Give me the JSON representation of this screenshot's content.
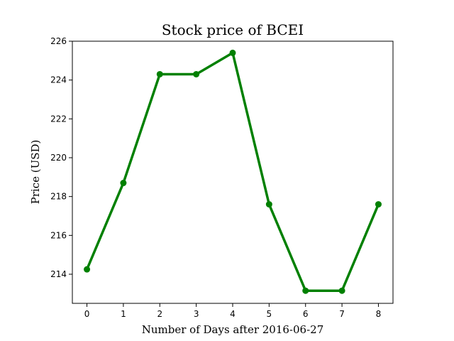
{
  "chart_data": {
    "type": "line",
    "title": "Stock price of BCEI",
    "xlabel": "Number of Days after 2016-06-27",
    "ylabel": "Price (USD)",
    "x": [
      0,
      1,
      2,
      3,
      4,
      5,
      6,
      7,
      8
    ],
    "series": [
      {
        "values": [
          214.25,
          218.7,
          224.3,
          224.3,
          225.4,
          217.6,
          213.15,
          213.15,
          217.6
        ],
        "color": "#008000"
      }
    ],
    "xticks": [
      "0",
      "1",
      "2",
      "3",
      "4",
      "5",
      "6",
      "7",
      "8"
    ],
    "yticks": [
      "214",
      "216",
      "218",
      "220",
      "222",
      "224",
      "226"
    ],
    "xlim": [
      -0.4,
      8.4
    ],
    "ylim": [
      212.5,
      226
    ],
    "grid": false,
    "markers": true
  }
}
